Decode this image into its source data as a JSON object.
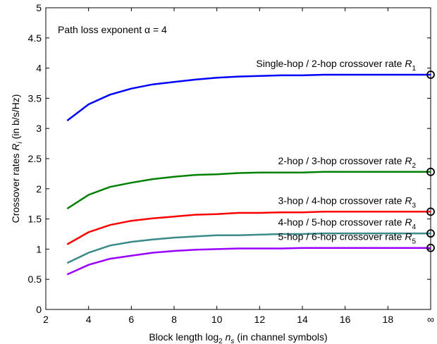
{
  "chart_data": {
    "type": "line",
    "title": "",
    "annotation": "Path loss exponent α = 4",
    "xlabel": "Block length log",
    "xlabel_sub": "2",
    "xlabel_var": "n",
    "xlabel_var_sub": "s",
    "xlabel_tail": "(in channel symbols)",
    "ylabel": "Crossover rates",
    "ylabel_var": "R",
    "ylabel_var_sub": "i",
    "ylabel_tail": "(in b/s/Hz)",
    "xlim": [
      2,
      20
    ],
    "ylim": [
      0,
      5
    ],
    "xticks": [
      "2",
      "4",
      "6",
      "8",
      "10",
      "12",
      "14",
      "16",
      "18",
      "∞"
    ],
    "yticks": [
      "0",
      "0.5",
      "1",
      "1.5",
      "2",
      "2.5",
      "3",
      "3.5",
      "4",
      "4.5",
      "5"
    ],
    "grid": false,
    "x": [
      3,
      4,
      5,
      6,
      7,
      8,
      9,
      10,
      11,
      12,
      13,
      14,
      15,
      16,
      17,
      18,
      19,
      20
    ],
    "series": [
      {
        "label_text": "Single-hop / 2-hop crossover rate ",
        "label_var": "R",
        "label_sub": "1",
        "color": "#0000ff",
        "values": [
          3.13,
          3.4,
          3.56,
          3.66,
          3.73,
          3.77,
          3.81,
          3.84,
          3.86,
          3.87,
          3.88,
          3.88,
          3.89,
          3.89,
          3.89,
          3.89,
          3.89,
          3.89
        ],
        "limit": 3.89
      },
      {
        "label_text": "2-hop / 3-hop crossover rate ",
        "label_var": "R",
        "label_sub": "2",
        "color": "#008000",
        "values": [
          1.67,
          1.9,
          2.03,
          2.1,
          2.16,
          2.2,
          2.23,
          2.24,
          2.26,
          2.27,
          2.27,
          2.27,
          2.28,
          2.28,
          2.28,
          2.28,
          2.28,
          2.28
        ],
        "limit": 2.28
      },
      {
        "label_text": "3-hop / 4-hop crossover rate ",
        "label_var": "R",
        "label_sub": "3",
        "color": "#ff0000",
        "values": [
          1.08,
          1.28,
          1.4,
          1.47,
          1.51,
          1.54,
          1.57,
          1.58,
          1.6,
          1.6,
          1.61,
          1.61,
          1.62,
          1.62,
          1.62,
          1.62,
          1.62,
          1.62
        ],
        "limit": 1.62
      },
      {
        "label_text": "4-hop / 5-hop crossover rate ",
        "label_var": "R",
        "label_sub": "4",
        "color": "#3a8a8a",
        "values": [
          0.77,
          0.94,
          1.06,
          1.12,
          1.16,
          1.19,
          1.21,
          1.23,
          1.23,
          1.24,
          1.25,
          1.25,
          1.26,
          1.26,
          1.26,
          1.26,
          1.26,
          1.26
        ],
        "limit": 1.26
      },
      {
        "label_text": "5-hop / 6-hop crossover rate ",
        "label_var": "R",
        "label_sub": "5",
        "color": "#9900ff",
        "values": [
          0.58,
          0.74,
          0.84,
          0.89,
          0.94,
          0.97,
          0.99,
          1.0,
          1.01,
          1.01,
          1.01,
          1.02,
          1.02,
          1.02,
          1.02,
          1.02,
          1.02,
          1.02
        ],
        "limit": 1.02
      }
    ]
  }
}
